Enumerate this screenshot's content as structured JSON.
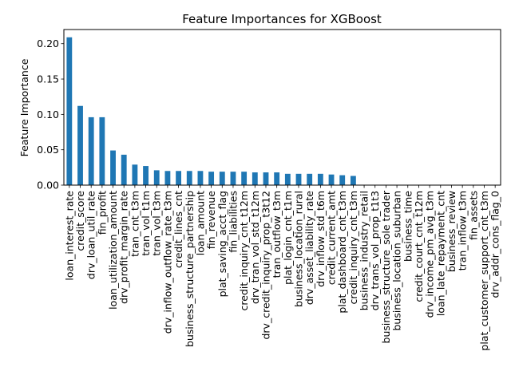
{
  "chart_data": {
    "type": "bar",
    "title": "Feature Importances for XGBoost",
    "xlabel": "",
    "ylabel": "Feature Importance",
    "ylim": [
      0,
      0.22
    ],
    "yticks": [
      0.0,
      0.05,
      0.1,
      0.15,
      0.2
    ],
    "ytick_labels": [
      "0.00",
      "0.05",
      "0.10",
      "0.15",
      "0.20"
    ],
    "grid": false,
    "bar_color": "#1f77b4",
    "categories": [
      "loan_interest_rate",
      "credit_score",
      "drv_loan_util_rate",
      "fin_profit",
      "loan_utilization_amount",
      "drv_profit_margin_rate",
      "tran_cnt_t3m",
      "tran_vol_t1m",
      "tran_vol_t3m",
      "drv_inflow_outflow_rate_t3m",
      "credit_lines_cnt",
      "business_structure_partnership",
      "loan_amount",
      "fin_revenue",
      "plat_saving_acct_flag",
      "fin_liabilities",
      "credit_inquiry_cnt_t12m",
      "drv_tran_vol_std_t12m",
      "drv_credit_inquiry_prop_t3t12",
      "tran_outflow_t3m",
      "plat_login_cnt_t1m",
      "business_location_rural",
      "drv_asset_liability_rate",
      "drv_inflow_std_t6m",
      "credit_current_amt",
      "plat_dashboard_cnt_t3m",
      "credit_inquiry_cnt_t3m",
      "business_industry_retail",
      "drv_trans_vol_prop_t1t3",
      "business_structure_sole trader",
      "business_location_suburban",
      "business_time",
      "credit_court_cnt_t12m",
      "drv_income_pm_avg_t3m",
      "loan_late_repayment_cnt",
      "business_review",
      "tran_inflow_t3m",
      "fin_assets",
      "plat_customer_support_cnt_t3m",
      "drv_addr_cons_flag_0"
    ],
    "values": [
      0.209,
      0.112,
      0.096,
      0.096,
      0.049,
      0.043,
      0.029,
      0.027,
      0.021,
      0.02,
      0.02,
      0.02,
      0.02,
      0.019,
      0.019,
      0.019,
      0.019,
      0.018,
      0.018,
      0.018,
      0.016,
      0.016,
      0.016,
      0.016,
      0.015,
      0.014,
      0.013,
      0,
      0,
      0,
      0,
      0,
      0,
      0,
      0,
      0,
      0,
      0,
      0,
      0
    ]
  }
}
